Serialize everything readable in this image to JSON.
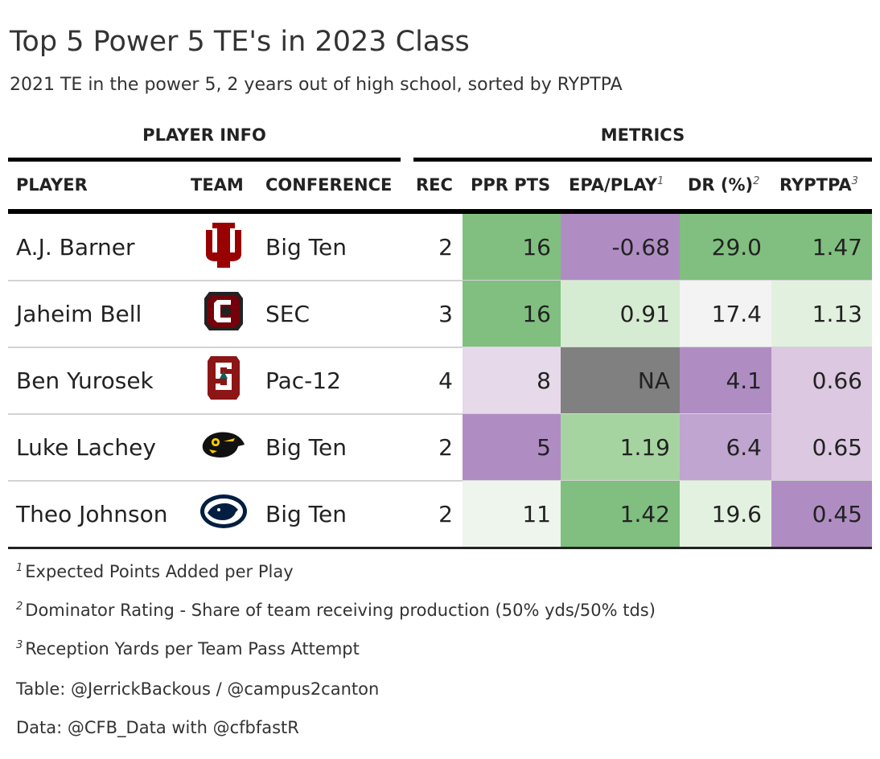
{
  "title": "Top 5 Power 5 TE's in 2023 Class",
  "subtitle": "2021 TE in the power 5, 2 years out of high school, sorted by RYPTPA",
  "spanners": {
    "player_info": "PLAYER INFO",
    "metrics": "METRICS"
  },
  "columns": {
    "player": "PLAYER",
    "team": "TEAM",
    "conference": "CONFERENCE",
    "rec": "REC",
    "ppr": "PPR PTS",
    "epa": "EPA/PLAY",
    "epa_mark": "1",
    "dr": "DR (%)",
    "dr_mark": "2",
    "ryptpa": "RYPTPA",
    "ryptpa_mark": "3"
  },
  "rows": [
    {
      "player": "A.J. Barner",
      "team_logo": "indiana-logo",
      "conference": "Big Ten",
      "rec": "2",
      "ppr": "16",
      "epa": "-0.68",
      "dr": "29.0",
      "ryptpa": "1.47",
      "colors": {
        "ppr": "#80bf80",
        "epa": "#af8dc3",
        "dr": "#80bf80",
        "ryptpa": "#80bf80"
      }
    },
    {
      "player": "Jaheim Bell",
      "team_logo": "south-carolina-logo",
      "conference": "SEC",
      "rec": "3",
      "ppr": "16",
      "epa": "0.91",
      "dr": "17.4",
      "ryptpa": "1.13",
      "colors": {
        "ppr": "#80bf80",
        "epa": "#d6ecd2",
        "dr": "#f3f3f3",
        "ryptpa": "#e2f1df"
      }
    },
    {
      "player": "Ben Yurosek",
      "team_logo": "stanford-logo",
      "conference": "Pac-12",
      "rec": "4",
      "ppr": "8",
      "epa": "NA",
      "dr": "4.1",
      "ryptpa": "0.66",
      "colors": {
        "ppr": "#e6d9ea",
        "epa": "#808080",
        "dr": "#af8dc3",
        "ryptpa": "#dcc8e1"
      }
    },
    {
      "player": "Luke Lachey",
      "team_logo": "iowa-logo",
      "conference": "Big Ten",
      "rec": "2",
      "ppr": "5",
      "epa": "1.19",
      "dr": "6.4",
      "ryptpa": "0.65",
      "colors": {
        "ppr": "#af8dc3",
        "epa": "#a6d4a0",
        "dr": "#c0a5d0",
        "ryptpa": "#dcc8e1"
      }
    },
    {
      "player": "Theo Johnson",
      "team_logo": "penn-state-logo",
      "conference": "Big Ten",
      "rec": "2",
      "ppr": "11",
      "epa": "1.42",
      "dr": "19.6",
      "ryptpa": "0.45",
      "colors": {
        "ppr": "#eef5ec",
        "epa": "#80bf80",
        "dr": "#e3f2e0",
        "ryptpa": "#af8dc3"
      }
    }
  ],
  "footnotes": [
    {
      "mark": "1",
      "text": "Expected Points Added per Play"
    },
    {
      "mark": "2",
      "text": "Dominator Rating - Share of team receiving production (50% yds/50% tds)"
    },
    {
      "mark": "3",
      "text": "Reception Yards per Team Pass Attempt"
    }
  ],
  "source_notes": [
    "Table: @JerrickBackous / @campus2canton",
    "Data: @CFB_Data with @cfbfastR"
  ]
}
